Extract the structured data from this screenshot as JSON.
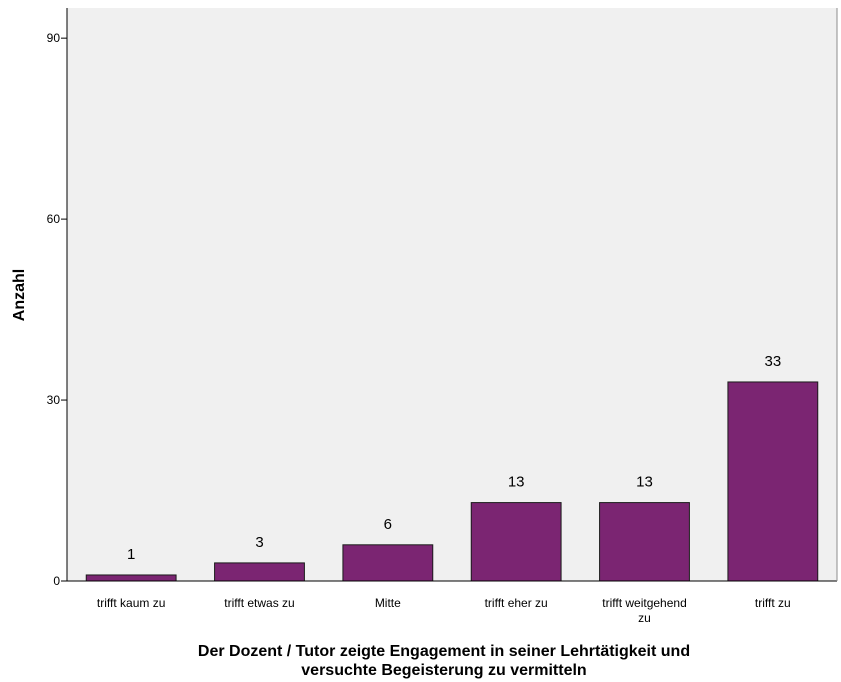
{
  "chart_data": {
    "type": "bar",
    "categories": [
      [
        "trifft kaum zu"
      ],
      [
        "trifft etwas zu"
      ],
      [
        "Mitte"
      ],
      [
        "trifft eher zu"
      ],
      [
        "trifft weitgehend",
        "zu"
      ],
      [
        "trifft zu"
      ]
    ],
    "values": [
      1,
      3,
      6,
      13,
      13,
      33
    ],
    "data_labels": [
      "1",
      "3",
      "6",
      "13",
      "13",
      "33"
    ],
    "xlabel": [
      "Der Dozent / Tutor zeigte Engagement in seiner Lehrtätigkeit und",
      "versuchte Begeisterung zu vermitteln"
    ],
    "ylabel": "Anzahl",
    "ylim": [
      0,
      95
    ],
    "yticks": [
      0,
      30,
      60,
      90
    ],
    "grid": false,
    "colors": {
      "bar_fill": "#7b2572",
      "bar_stroke": "#1a1a1a",
      "plot_background": "#f0f0f0",
      "axis": "#000000"
    }
  }
}
